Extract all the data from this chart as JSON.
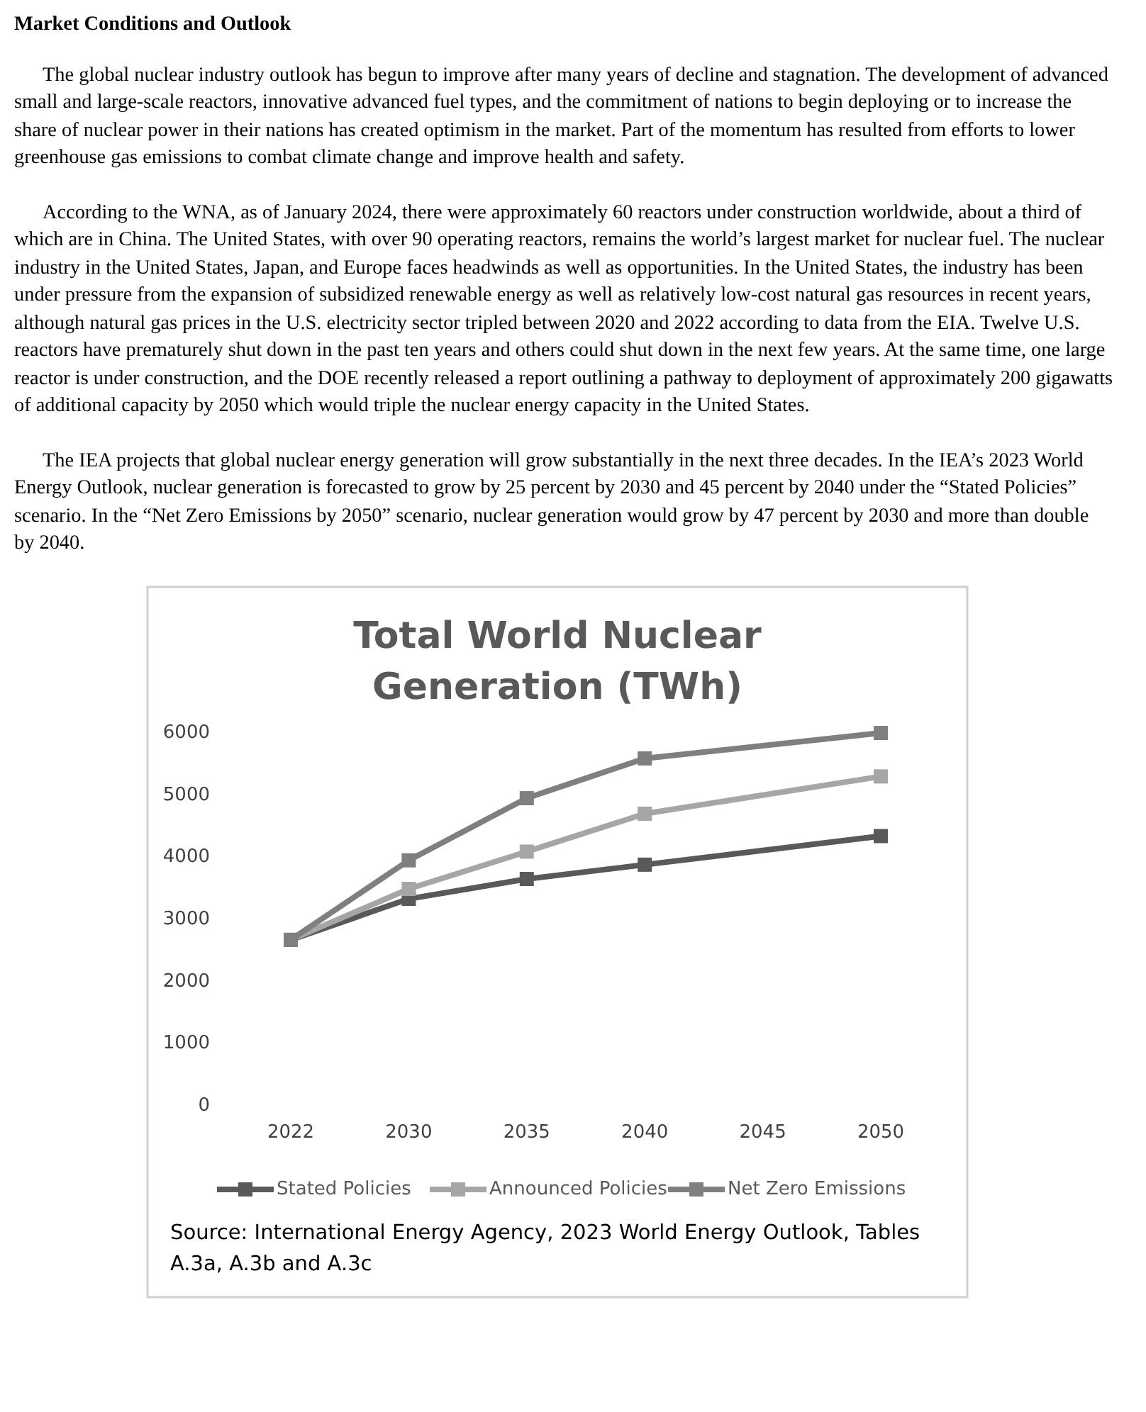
{
  "chart_data": {
    "type": "line",
    "title": "Total World Nuclear Generation (TWh)",
    "categories": [
      "2022",
      "2030",
      "2035",
      "2040",
      "2045",
      "2050"
    ],
    "series": [
      {
        "name": "Stated Policies",
        "color": "#595959",
        "values": [
          2670,
          3330,
          3650,
          3880,
          null,
          4340
        ]
      },
      {
        "name": "Announced Policies",
        "color": "#a6a6a6",
        "values": [
          2670,
          3490,
          4090,
          4700,
          null,
          5300
        ]
      },
      {
        "name": "Net Zero Emissions",
        "color": "#7f7f7f",
        "values": [
          2670,
          3950,
          4950,
          5590,
          null,
          6000
        ]
      }
    ],
    "ylim": [
      0,
      6000
    ],
    "yticks": [
      0,
      1000,
      2000,
      3000,
      4000,
      5000,
      6000
    ],
    "grid": false,
    "legend": "bottom",
    "marker": "square",
    "line_style": "solid",
    "annotations": [
      "Market Conditions and Outlook",
      "The global nuclear industry outlook has begun to improve after many years of decline and stagnation. The development of advanced small and large-scale reactors, innovative advanced fuel types, and the commitment of nations to begin deploying or to increase the share of nuclear power in their nations has created optimism in the market. Part of the momentum has resulted from efforts to lower greenhouse gas emissions to combat climate change and improve health and safety.",
      "According to the WNA, as of January 2024, there were approximately 60 reactors under construction worldwide, about a third of which are in China. The United States, with over 90 operating reactors, remains the world’s largest market for nuclear fuel. The nuclear industry in the United States, Japan, and Europe faces headwinds as well as opportunities. In the United States, the industry has been under pressure from the expansion of subsidized renewable energy as well as relatively low-cost natural gas resources in recent years, although natural gas prices in the U.S. electricity sector tripled between 2020 and 2022 according to data from the EIA. Twelve U.S. reactors have prematurely shut down in the past ten years and others could shut down in the next few years. At the same time, one large reactor is under construction, and the DOE recently released a report outlining a pathway to deployment of approximately 200 gigawatts of additional capacity by 2050 which would triple the nuclear energy capacity in the United States.",
      "The IEA projects that global nuclear energy generation will grow substantially in the next three decades. In the IEA’s 2023 World Energy Outlook, nuclear generation is forecasted to grow by 25 percent by 2030 and 45 percent by 2040 under the “Stated Policies” scenario. In the “Net Zero Emissions by 2050” scenario, nuclear generation would grow by 47 percent by 2030 and more than double by 2040.",
      "Source:  International Energy Agency, 2023 World Energy Outlook, Tables A.3a, A.3b and A.3c"
    ]
  }
}
